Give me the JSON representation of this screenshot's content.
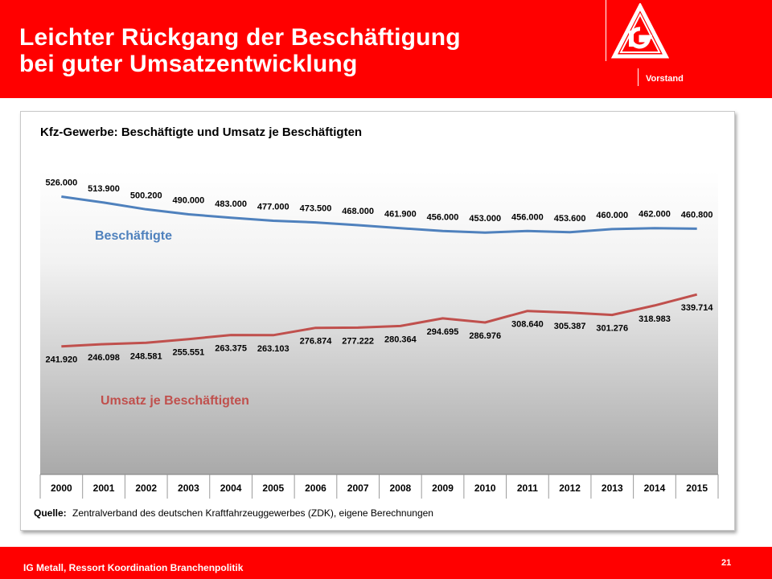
{
  "header": {
    "title_line1": "Leichter Rückgang der Beschäftigung",
    "title_line2": "bei guter Umsatzentwicklung",
    "org_unit": "Vorstand",
    "logo_icon": "ig-metall-logo-icon",
    "background": "#ff0000"
  },
  "footer": {
    "text": "IG Metall, Ressort Koordination Branchenpolitik",
    "page_number": "21"
  },
  "chart_data": {
    "type": "line",
    "title": "Kfz-Gewerbe: Beschäftigte und Umsatz je Beschäftigten",
    "categories": [
      "2000",
      "2001",
      "2002",
      "2003",
      "2004",
      "2005",
      "2006",
      "2007",
      "2008",
      "2009",
      "2010",
      "2011",
      "2012",
      "2013",
      "2014",
      "2015"
    ],
    "series": [
      {
        "name": "Beschäftigte",
        "color": "#4f81bd",
        "values": [
          526000,
          513900,
          500200,
          490000,
          483000,
          477000,
          473500,
          468000,
          461900,
          456000,
          453000,
          456000,
          453600,
          460000,
          462000,
          460800
        ],
        "labels": [
          "526.000",
          "513.900",
          "500.200",
          "490.000",
          "483.000",
          "477.000",
          "473.500",
          "468.000",
          "461.900",
          "456.000",
          "453.000",
          "456.000",
          "453.600",
          "460.000",
          "462.000",
          "460.800"
        ]
      },
      {
        "name": "Umsatz je Beschäftigten",
        "color": "#c0504d",
        "values": [
          241920,
          246098,
          248581,
          255551,
          263375,
          263103,
          276874,
          277222,
          280364,
          294695,
          286976,
          308640,
          305387,
          301276,
          318983,
          339714
        ],
        "labels": [
          "241.920",
          "246.098",
          "248.581",
          "255.551",
          "263.375",
          "263.103",
          "276.874",
          "277.222",
          "280.364",
          "294.695",
          "286.976",
          "308.640",
          "305.387",
          "301.276",
          "318.983",
          "339.714"
        ]
      }
    ],
    "source_label": "Quelle:",
    "source_text": "Zentralverband des deutschen Kraftfahrzeuggewerbes (ZDK), eigene Berechnungen",
    "grid": false,
    "background": "vertical gradient white to grey"
  }
}
